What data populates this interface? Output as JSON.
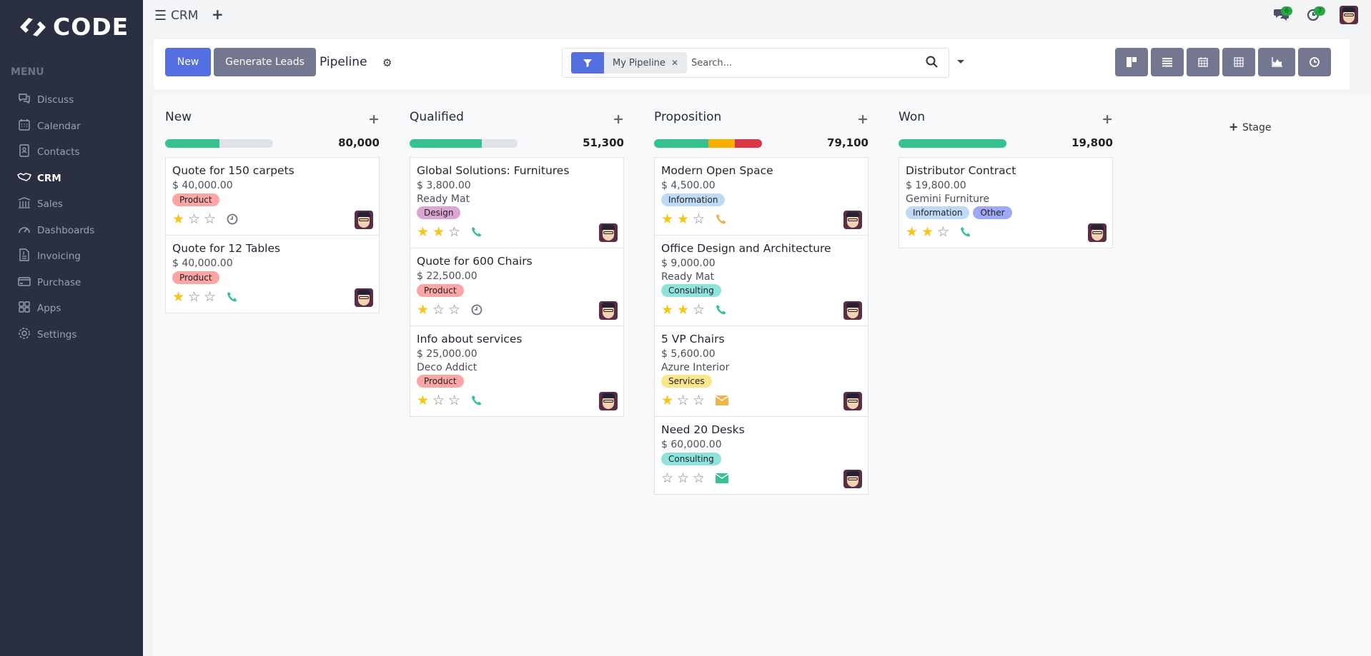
{
  "brand": {
    "name": "CODE"
  },
  "sidebar": {
    "menu_label": "MENU",
    "items": [
      {
        "label": "Discuss",
        "icon": "chat-icon"
      },
      {
        "label": "Calendar",
        "icon": "calendar-icon"
      },
      {
        "label": "Contacts",
        "icon": "contacts-icon"
      },
      {
        "label": "CRM",
        "icon": "handshake-icon",
        "active": true
      },
      {
        "label": "Sales",
        "icon": "bank-chart-icon"
      },
      {
        "label": "Dashboards",
        "icon": "gauge-icon"
      },
      {
        "label": "Invoicing",
        "icon": "invoice-icon"
      },
      {
        "label": "Purchase",
        "icon": "credit-card-icon"
      },
      {
        "label": "Apps",
        "icon": "grid-icon"
      },
      {
        "label": "Settings",
        "icon": "gear-icon"
      }
    ]
  },
  "topbar": {
    "app_title": "CRM",
    "messages_count": "6",
    "activities_count": "7"
  },
  "control_panel": {
    "new_label": "New",
    "generate_label": "Generate Leads",
    "title": "Pipeline",
    "search": {
      "facet": "My Pipeline",
      "placeholder": "Search..."
    },
    "views": [
      "kanban-icon",
      "list-icon",
      "calendar-icon",
      "pivot-icon",
      "graph-icon",
      "activity-icon"
    ]
  },
  "colors": {
    "accent": "#5470e0",
    "sidebar": "#2a2f42",
    "green": "#34c38f",
    "orange": "#ffac00",
    "red": "#dc3545",
    "star": "#f5c517"
  },
  "kanban": {
    "add_stage": "Stage",
    "columns": [
      {
        "name": "New",
        "total": "80,000",
        "progress": [
          {
            "color": "#34c38f",
            "pct": 50
          }
        ],
        "cards": [
          {
            "title": "Quote for 150 carpets",
            "amount": "$ 40,000.00",
            "tags": [
              {
                "label": "Product",
                "color": "#fca5a5"
              }
            ],
            "stars": 1,
            "activity": "clock",
            "activity_color": "#6b7280"
          },
          {
            "title": "Quote for 12 Tables",
            "amount": "$ 40,000.00",
            "tags": [
              {
                "label": "Product",
                "color": "#fca5a5"
              }
            ],
            "stars": 1,
            "activity": "phone",
            "activity_color": "#34c38f"
          }
        ]
      },
      {
        "name": "Qualified",
        "total": "51,300",
        "progress": [
          {
            "color": "#34c38f",
            "pct": 67
          }
        ],
        "cards": [
          {
            "title": "Global Solutions: Furnitures",
            "amount": "$ 3,800.00",
            "company": "Ready Mat",
            "tags": [
              {
                "label": "Design",
                "color": "#dba6d4"
              }
            ],
            "stars": 2,
            "activity": "phone",
            "activity_color": "#34c38f"
          },
          {
            "title": "Quote for 600 Chairs",
            "amount": "$ 22,500.00",
            "tags": [
              {
                "label": "Product",
                "color": "#fca5a5"
              }
            ],
            "stars": 1,
            "activity": "clock",
            "activity_color": "#6b7280"
          },
          {
            "title": "Info about services",
            "amount": "$ 25,000.00",
            "company": "Deco Addict",
            "tags": [
              {
                "label": "Product",
                "color": "#fca5a5"
              }
            ],
            "stars": 1,
            "activity": "phone",
            "activity_color": "#34c38f"
          }
        ]
      },
      {
        "name": "Proposition",
        "total": "79,100",
        "progress": [
          {
            "color": "#34c38f",
            "pct": 50
          },
          {
            "color": "#ffac00",
            "pct": 25
          },
          {
            "color": "#dc3545",
            "pct": 25
          }
        ],
        "cards": [
          {
            "title": "Modern Open Space",
            "amount": "$ 4,500.00",
            "tags": [
              {
                "label": "Information",
                "color": "#bfdaf7"
              }
            ],
            "stars": 2,
            "activity": "phone",
            "activity_color": "#f0ad4e"
          },
          {
            "title": "Office Design and Architecture",
            "amount": "$ 9,000.00",
            "company": "Ready Mat",
            "tags": [
              {
                "label": "Consulting",
                "color": "#8ee3dc"
              }
            ],
            "stars": 2,
            "activity": "phone",
            "activity_color": "#34c38f"
          },
          {
            "title": "5 VP Chairs",
            "amount": "$ 5,600.00",
            "company": "Azure Interior",
            "tags": [
              {
                "label": "Services",
                "color": "#fde58b"
              }
            ],
            "stars": 1,
            "activity": "envelope",
            "activity_color": "#f0b34e"
          },
          {
            "title": "Need 20 Desks",
            "amount": "$ 60,000.00",
            "tags": [
              {
                "label": "Consulting",
                "color": "#8ee3dc"
              }
            ],
            "stars": 0,
            "activity": "envelope",
            "activity_color": "#34c38f"
          }
        ]
      },
      {
        "name": "Won",
        "total": "19,800",
        "progress": [
          {
            "color": "#34c38f",
            "pct": 100
          }
        ],
        "cards": [
          {
            "title": "Distributor Contract",
            "amount": "$ 19,800.00",
            "company": "Gemini Furniture",
            "tags": [
              {
                "label": "Information",
                "color": "#bfdaf7"
              },
              {
                "label": "Other",
                "color": "#9ea8f5"
              }
            ],
            "stars": 2,
            "activity": "phone",
            "activity_color": "#34c38f"
          }
        ]
      }
    ]
  }
}
